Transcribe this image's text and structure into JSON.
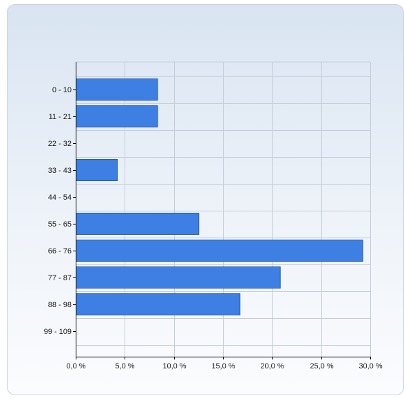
{
  "chart_data": {
    "type": "bar",
    "orientation": "horizontal",
    "categories": [
      "0 - 10",
      "11 - 21",
      "22 - 32",
      "33 - 43",
      "44 - 54",
      "55 - 65",
      "66 - 76",
      "77 - 87",
      "88 - 98",
      "99 - 109"
    ],
    "values": [
      8.3,
      8.3,
      0,
      4.2,
      0,
      12.5,
      29.2,
      20.8,
      16.7,
      0
    ],
    "xlim": [
      0,
      30
    ],
    "xticks": [
      0,
      5,
      10,
      15,
      20,
      25,
      30
    ],
    "xtick_labels": [
      "0,0 %",
      "5,0 %",
      "10,0 %",
      "15,0 %",
      "20,0 %",
      "25,0 %",
      "30,0 %"
    ],
    "grid": true,
    "bar_color": "#3d7fe3",
    "title": "",
    "xlabel": "",
    "ylabel": ""
  }
}
